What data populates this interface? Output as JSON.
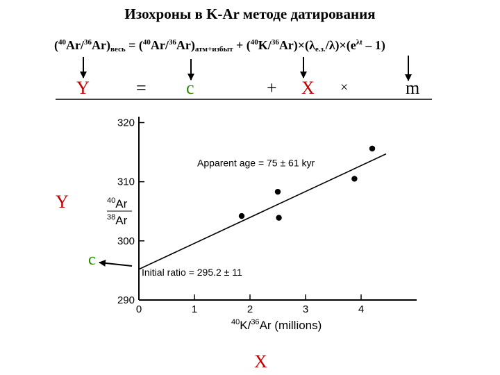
{
  "slide": {
    "title": "Изохроны в K-Ar методе датирования",
    "formula": {
      "lhs_open": "(",
      "lhs_sup1": "40",
      "lhs_ar": "Ar/",
      "lhs_sup2": "36",
      "lhs_ar2": "Ar)",
      "lhs_sub": "весь",
      "eq": " = (",
      "c_sup1": "40",
      "c_ar": "Ar/",
      "c_sup2": "36",
      "c_ar2": "Ar)",
      "c_sub": "атм+избыт",
      "plus": " + (",
      "x_sup1": "40",
      "x_k": "K/",
      "x_sup2": "36",
      "x_ar": "Ar)×(λ",
      "x_sub": "e.з.",
      "x_tail": "/λ)×(e",
      "x_exp": "λt",
      "x_end": " – 1)"
    },
    "row": {
      "y": "Y",
      "eq": "=",
      "c": "c",
      "plus": "+",
      "x": "X",
      "times": "×",
      "m": "m"
    },
    "side": {
      "y": "Y",
      "c": "c",
      "x": "X"
    }
  },
  "colors": {
    "y": "#c00000",
    "c": "#2a8a00",
    "x": "#c00000"
  },
  "chart_data": {
    "type": "scatter",
    "xlabel": "K/Ar (millions)",
    "xlabel_parts": {
      "sup1": "40",
      "a": "K/",
      "sup2": "36",
      "b": "Ar (millions)"
    },
    "ylabel_parts": {
      "num_sup": "40",
      "num": "Ar",
      "den_sup": "38",
      "den": "Ar"
    },
    "xlim": [
      0,
      5
    ],
    "ylim": [
      290,
      321
    ],
    "x_ticks": [
      0,
      1,
      2,
      3,
      4
    ],
    "y_ticks": [
      290,
      300,
      310,
      320
    ],
    "points": [
      {
        "x": 1.85,
        "y": 304.2
      },
      {
        "x": 2.5,
        "y": 308.3
      },
      {
        "x": 2.52,
        "y": 303.9
      },
      {
        "x": 3.88,
        "y": 310.5
      },
      {
        "x": 4.2,
        "y": 315.6
      }
    ],
    "fit_line": {
      "x": [
        0,
        4.45
      ],
      "y": [
        295.2,
        314.7
      ]
    },
    "annotations": {
      "age": "Apparent age = 75 ± 61 kyr",
      "ratio": "Initial ratio = 295.2 ± 11"
    },
    "grid": false
  }
}
